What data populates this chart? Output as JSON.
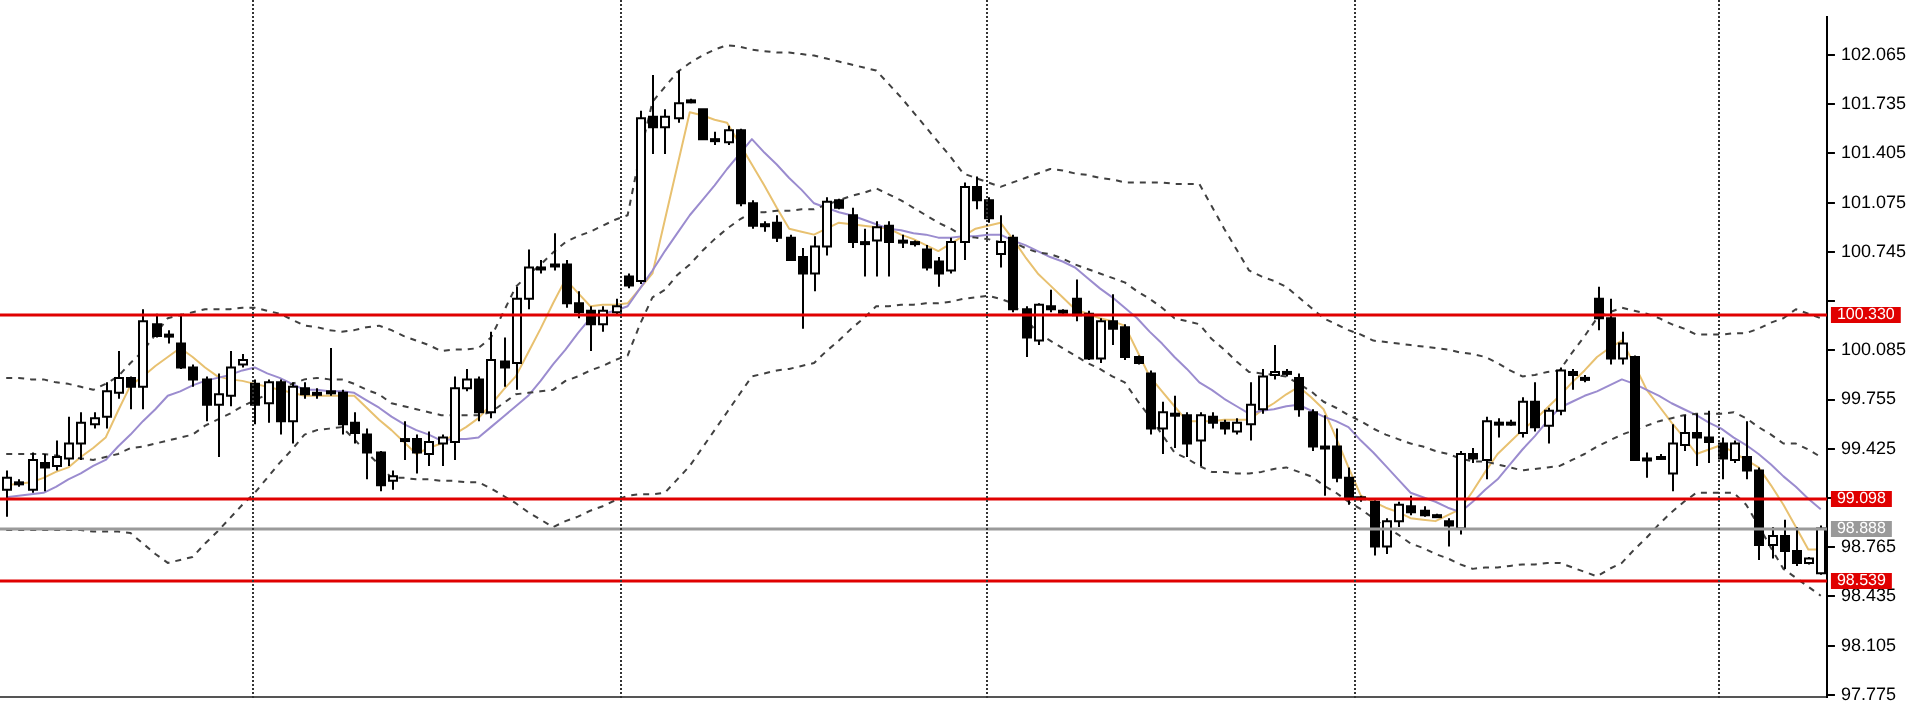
{
  "chart_data": {
    "type": "candlestick",
    "categories": [
      null,
      null,
      null,
      null,
      null,
      null,
      null,
      null,
      null,
      null,
      null,
      null,
      null,
      null,
      null,
      null,
      null,
      null,
      null,
      null,
      null,
      null,
      null,
      null,
      null,
      null,
      null,
      null,
      null,
      null,
      null,
      null,
      null,
      null,
      null,
      null,
      null,
      null,
      null,
      null,
      null,
      null,
      null,
      null,
      null,
      null,
      null,
      null,
      null,
      null,
      null,
      null,
      null,
      null,
      null,
      null,
      null,
      null,
      null,
      null,
      null,
      null,
      null,
      null,
      null,
      null,
      null,
      null,
      null,
      null,
      null,
      null,
      null,
      null,
      null,
      null,
      null,
      null,
      null,
      null,
      null,
      null,
      null,
      null,
      null,
      null,
      null,
      null,
      null,
      null,
      null,
      null,
      null,
      null,
      null,
      null,
      null,
      null,
      null,
      null,
      null,
      null,
      null,
      null,
      null,
      null,
      null,
      null,
      null,
      null,
      null,
      null,
      null,
      null,
      null,
      null,
      null,
      null,
      null,
      null,
      null,
      null,
      null,
      null,
      null,
      null,
      null,
      null,
      null,
      null,
      null,
      null,
      null,
      null,
      null,
      null,
      null,
      null,
      null,
      null,
      null,
      null,
      null,
      null,
      null,
      null,
      null
    ],
    "ohlc": [
      [
        99.15,
        99.28,
        98.97,
        99.23
      ],
      [
        99.19,
        99.22,
        99.17,
        99.2
      ],
      [
        99.15,
        99.4,
        99.13,
        99.35
      ],
      [
        99.33,
        99.39,
        99.14,
        99.3
      ],
      [
        99.31,
        99.48,
        99.28,
        99.37
      ],
      [
        99.36,
        99.64,
        99.31,
        99.46
      ],
      [
        99.46,
        99.67,
        99.35,
        99.6
      ],
      [
        99.59,
        99.67,
        99.56,
        99.63
      ],
      [
        99.64,
        99.87,
        99.56,
        99.81
      ],
      [
        99.8,
        100.08,
        99.76,
        99.9
      ],
      [
        99.9,
        99.91,
        99.69,
        99.84
      ],
      [
        99.84,
        100.36,
        99.69,
        100.28
      ],
      [
        100.26,
        100.33,
        100.17,
        100.18
      ],
      [
        100.18,
        100.22,
        100.13,
        100.19
      ],
      [
        100.13,
        100.33,
        99.96,
        99.97
      ],
      [
        99.97,
        99.99,
        99.84,
        99.89
      ],
      [
        99.89,
        99.91,
        99.61,
        99.72
      ],
      [
        99.72,
        99.93,
        99.37,
        99.79
      ],
      [
        99.78,
        100.08,
        99.71,
        99.97
      ],
      [
        99.99,
        100.06,
        99.97,
        100.02
      ],
      [
        99.86,
        99.89,
        99.59,
        99.72
      ],
      [
        99.73,
        99.89,
        99.6,
        99.87
      ],
      [
        99.87,
        99.89,
        99.52,
        99.61
      ],
      [
        99.61,
        99.87,
        99.46,
        99.84
      ],
      [
        99.83,
        99.87,
        99.76,
        99.79
      ],
      [
        99.8,
        99.83,
        99.76,
        99.8
      ],
      [
        99.8,
        100.1,
        99.78,
        99.81
      ],
      [
        99.8,
        99.82,
        99.52,
        99.59
      ],
      [
        99.6,
        99.67,
        99.46,
        99.53
      ],
      [
        99.52,
        99.56,
        99.22,
        99.4
      ],
      [
        99.4,
        99.41,
        99.14,
        99.18
      ],
      [
        99.21,
        99.28,
        99.15,
        99.24
      ],
      [
        99.49,
        99.61,
        99.35,
        99.49
      ],
      [
        99.49,
        99.52,
        99.26,
        99.4
      ],
      [
        99.39,
        99.54,
        99.31,
        99.47
      ],
      [
        99.46,
        99.52,
        99.31,
        99.5
      ],
      [
        99.47,
        99.91,
        99.35,
        99.83
      ],
      [
        99.83,
        99.96,
        99.81,
        99.89
      ],
      [
        99.89,
        99.91,
        99.61,
        99.67
      ],
      [
        99.67,
        100.21,
        99.63,
        100.02
      ],
      [
        100.01,
        100.17,
        99.84,
        99.97
      ],
      [
        100.0,
        100.51,
        99.82,
        100.43
      ],
      [
        100.43,
        100.76,
        100.36,
        100.64
      ],
      [
        100.63,
        100.69,
        100.6,
        100.64
      ],
      [
        100.66,
        100.87,
        100.62,
        100.66
      ],
      [
        100.66,
        100.69,
        100.37,
        100.4
      ],
      [
        100.4,
        100.48,
        100.3,
        100.34
      ],
      [
        100.35,
        100.38,
        100.08,
        100.26
      ],
      [
        100.26,
        100.38,
        100.21,
        100.35
      ],
      [
        100.34,
        100.43,
        100.32,
        100.38
      ],
      [
        100.58,
        100.6,
        100.5,
        100.52
      ],
      [
        100.55,
        101.69,
        100.53,
        101.64
      ],
      [
        101.65,
        101.93,
        101.4,
        101.58
      ],
      [
        101.58,
        101.7,
        101.4,
        101.65
      ],
      [
        101.64,
        101.96,
        101.61,
        101.74
      ],
      [
        101.76,
        101.77,
        101.74,
        101.75
      ],
      [
        101.7,
        101.7,
        101.5,
        101.5
      ],
      [
        101.5,
        101.55,
        101.46,
        101.5
      ],
      [
        101.48,
        101.59,
        101.46,
        101.56
      ],
      [
        101.56,
        101.57,
        101.05,
        101.07
      ],
      [
        101.07,
        101.09,
        100.9,
        100.92
      ],
      [
        100.93,
        100.95,
        100.88,
        100.93
      ],
      [
        100.94,
        100.99,
        100.81,
        100.84
      ],
      [
        100.84,
        100.86,
        100.69,
        100.69
      ],
      [
        100.71,
        100.77,
        100.23,
        100.6
      ],
      [
        100.6,
        100.85,
        100.48,
        100.78
      ],
      [
        100.78,
        101.11,
        100.72,
        101.08
      ],
      [
        101.09,
        101.1,
        101.03,
        101.04
      ],
      [
        100.99,
        101.04,
        100.77,
        100.81
      ],
      [
        100.81,
        100.9,
        100.58,
        100.81
      ],
      [
        100.82,
        100.95,
        100.58,
        100.91
      ],
      [
        100.92,
        100.95,
        100.58,
        100.81
      ],
      [
        100.82,
        100.86,
        100.77,
        100.81
      ],
      [
        100.81,
        100.82,
        100.78,
        100.8
      ],
      [
        100.76,
        100.79,
        100.62,
        100.64
      ],
      [
        100.68,
        100.71,
        100.51,
        100.6
      ],
      [
        100.62,
        100.84,
        100.6,
        100.81
      ],
      [
        100.81,
        101.21,
        100.69,
        101.18
      ],
      [
        101.18,
        101.25,
        101.03,
        101.09
      ],
      [
        101.09,
        101.11,
        100.94,
        100.97
      ],
      [
        100.73,
        100.99,
        100.64,
        100.81
      ],
      [
        100.84,
        100.86,
        100.34,
        100.36
      ],
      [
        100.36,
        100.38,
        100.04,
        100.17
      ],
      [
        100.15,
        100.4,
        100.12,
        100.39
      ],
      [
        100.38,
        100.49,
        100.34,
        100.36
      ],
      [
        100.35,
        100.36,
        100.32,
        100.35
      ],
      [
        100.43,
        100.56,
        100.28,
        100.32
      ],
      [
        100.33,
        100.35,
        100.02,
        100.03
      ],
      [
        100.03,
        100.3,
        100.0,
        100.28
      ],
      [
        100.28,
        100.46,
        100.12,
        100.23
      ],
      [
        100.24,
        100.26,
        100.02,
        100.04
      ],
      [
        100.04,
        100.05,
        99.99,
        100.0
      ],
      [
        99.93,
        99.95,
        99.52,
        99.56
      ],
      [
        99.56,
        99.74,
        99.39,
        99.67
      ],
      [
        99.66,
        99.78,
        99.43,
        99.66
      ],
      [
        99.65,
        99.67,
        99.37,
        99.46
      ],
      [
        99.48,
        99.67,
        99.31,
        99.65
      ],
      [
        99.64,
        99.67,
        99.56,
        99.6
      ],
      [
        99.6,
        99.62,
        99.52,
        99.56
      ],
      [
        99.54,
        99.63,
        99.52,
        99.6
      ],
      [
        99.59,
        99.87,
        99.48,
        99.72
      ],
      [
        99.69,
        99.96,
        99.66,
        99.91
      ],
      [
        99.92,
        100.12,
        99.89,
        99.94
      ],
      [
        99.94,
        99.96,
        99.91,
        99.94
      ],
      [
        99.9,
        99.93,
        99.64,
        99.69
      ],
      [
        99.67,
        99.69,
        99.41,
        99.44
      ],
      [
        99.44,
        99.65,
        99.11,
        99.44
      ],
      [
        99.44,
        99.56,
        99.2,
        99.23
      ],
      [
        99.23,
        99.3,
        99.05,
        99.1
      ],
      [
        99.1,
        99.11,
        99.07,
        99.1
      ],
      [
        99.07,
        99.08,
        98.71,
        98.77
      ],
      [
        98.77,
        98.96,
        98.72,
        98.94
      ],
      [
        98.94,
        99.07,
        98.9,
        99.05
      ],
      [
        99.04,
        99.11,
        98.98,
        99.0
      ],
      [
        99.01,
        99.04,
        98.97,
        98.98
      ],
      [
        98.98,
        98.99,
        98.97,
        98.98
      ],
      [
        98.94,
        98.96,
        98.77,
        98.91
      ],
      [
        98.89,
        99.41,
        98.85,
        99.39
      ],
      [
        99.39,
        99.43,
        99.33,
        99.36
      ],
      [
        99.35,
        99.64,
        99.22,
        99.61
      ],
      [
        99.6,
        99.63,
        99.5,
        99.6
      ],
      [
        99.6,
        99.62,
        99.58,
        99.6
      ],
      [
        99.53,
        99.77,
        99.5,
        99.74
      ],
      [
        99.74,
        99.87,
        99.54,
        99.57
      ],
      [
        99.58,
        99.7,
        99.46,
        99.68
      ],
      [
        99.68,
        99.97,
        99.65,
        99.95
      ],
      [
        99.94,
        99.96,
        99.82,
        99.92
      ],
      [
        99.9,
        99.92,
        99.87,
        99.9
      ],
      [
        100.43,
        100.51,
        100.22,
        100.3
      ],
      [
        100.3,
        100.43,
        99.99,
        100.03
      ],
      [
        100.03,
        100.21,
        99.99,
        100.13
      ],
      [
        100.04,
        100.05,
        99.35,
        99.35
      ],
      [
        99.36,
        99.4,
        99.23,
        99.36
      ],
      [
        99.37,
        99.39,
        99.35,
        99.37
      ],
      [
        99.26,
        99.59,
        99.14,
        99.46
      ],
      [
        99.45,
        99.65,
        99.41,
        99.53
      ],
      [
        99.53,
        99.66,
        99.31,
        99.5
      ],
      [
        99.5,
        99.68,
        99.33,
        99.47
      ],
      [
        99.46,
        99.5,
        99.22,
        99.36
      ],
      [
        99.35,
        99.48,
        99.33,
        99.46
      ],
      [
        99.37,
        99.61,
        99.22,
        99.28
      ],
      [
        99.28,
        99.3,
        98.68,
        98.78
      ],
      [
        98.78,
        98.9,
        98.69,
        98.84
      ],
      [
        98.84,
        98.95,
        98.62,
        98.74
      ],
      [
        98.74,
        98.9,
        98.64,
        98.66
      ],
      [
        98.66,
        98.7,
        98.65,
        98.69
      ],
      [
        98.59,
        98.91,
        98.58,
        98.89
      ]
    ],
    "series": [
      {
        "type": "line",
        "color": "#404040",
        "line_style": "dashed",
        "values": [
          99.9,
          99.9,
          99.89,
          99.89,
          99.87,
          99.86,
          99.84,
          99.82,
          99.86,
          99.91,
          100.0,
          100.08,
          100.19,
          100.3,
          100.32,
          100.34,
          100.36,
          100.36,
          100.36,
          100.37,
          100.37,
          100.35,
          100.33,
          100.29,
          100.25,
          100.24,
          100.22,
          100.21,
          100.22,
          100.24,
          100.25,
          100.22,
          100.18,
          100.15,
          100.12,
          100.08,
          100.09,
          100.09,
          100.1,
          100.17,
          100.34,
          100.51,
          100.59,
          100.66,
          100.74,
          100.81,
          100.85,
          100.88,
          100.92,
          100.96,
          100.99,
          101.4,
          101.75,
          101.85,
          101.95,
          102.01,
          102.06,
          102.1,
          102.13,
          102.12,
          102.1,
          102.09,
          102.08,
          102.08,
          102.07,
          102.06,
          102.04,
          102.02,
          102.0,
          101.98,
          101.96,
          101.87,
          101.78,
          101.68,
          101.58,
          101.48,
          101.38,
          101.27,
          101.24,
          101.21,
          101.18,
          101.21,
          101.24,
          101.27,
          101.3,
          101.29,
          101.27,
          101.26,
          101.24,
          101.23,
          101.21,
          101.21,
          101.21,
          101.21,
          101.2,
          101.2,
          101.2,
          101.05,
          100.9,
          100.76,
          100.62,
          100.58,
          100.55,
          100.51,
          100.44,
          100.37,
          100.3,
          100.26,
          100.22,
          100.19,
          100.15,
          100.14,
          100.13,
          100.12,
          100.11,
          100.1,
          100.09,
          100.07,
          100.06,
          100.04,
          100.0,
          99.95,
          99.91,
          99.92,
          99.94,
          99.95,
          100.07,
          100.18,
          100.3,
          100.34,
          100.37,
          100.35,
          100.33,
          100.3,
          100.26,
          100.23,
          100.19,
          100.19,
          100.19,
          100.2,
          100.2,
          100.23,
          100.27,
          100.3,
          100.36,
          100.33,
          100.3
        ]
      },
      {
        "type": "line",
        "color": "#404040",
        "line_style": "dashed",
        "values": [
          99.39,
          99.39,
          99.39,
          99.39,
          99.38,
          99.37,
          99.36,
          99.35,
          99.37,
          99.39,
          99.43,
          99.44,
          99.46,
          99.48,
          99.5,
          99.52,
          99.58,
          99.62,
          99.66,
          99.71,
          99.75,
          99.79,
          99.83,
          99.86,
          99.89,
          99.9,
          99.89,
          99.89,
          99.86,
          99.82,
          99.79,
          99.73,
          99.71,
          99.69,
          99.67,
          99.65,
          99.65,
          99.65,
          99.65,
          99.67,
          99.73,
          99.79,
          99.8,
          99.81,
          99.82,
          99.88,
          99.91,
          99.95,
          99.98,
          100.02,
          100.05,
          100.26,
          100.44,
          100.49,
          100.59,
          100.66,
          100.75,
          100.83,
          100.9,
          100.96,
          101.01,
          101.01,
          101.02,
          101.02,
          101.03,
          101.03,
          101.06,
          101.09,
          101.12,
          101.14,
          101.17,
          101.13,
          101.09,
          101.04,
          100.99,
          100.94,
          100.9,
          100.85,
          100.84,
          100.83,
          100.81,
          100.81,
          100.77,
          100.74,
          100.73,
          100.7,
          100.66,
          100.63,
          100.6,
          100.57,
          100.54,
          100.48,
          100.43,
          100.37,
          100.3,
          100.28,
          100.26,
          100.16,
          100.09,
          100.01,
          99.94,
          99.93,
          99.92,
          99.91,
          99.86,
          99.81,
          99.74,
          99.7,
          99.65,
          99.61,
          99.56,
          99.52,
          99.49,
          99.46,
          99.44,
          99.41,
          99.39,
          99.36,
          99.34,
          99.34,
          99.32,
          99.3,
          99.28,
          99.29,
          99.3,
          99.31,
          99.35,
          99.39,
          99.44,
          99.48,
          99.52,
          99.55,
          99.58,
          99.61,
          99.63,
          99.65,
          99.66,
          99.66,
          99.66,
          99.67,
          99.63,
          99.57,
          99.52,
          99.46,
          99.46,
          99.42,
          99.37
        ]
      },
      {
        "type": "line",
        "color": "#404040",
        "line_style": "dashed",
        "values": [
          98.88,
          98.88,
          98.88,
          98.88,
          98.88,
          98.88,
          98.88,
          98.87,
          98.87,
          98.87,
          98.86,
          98.79,
          98.72,
          98.66,
          98.68,
          98.7,
          98.79,
          98.87,
          98.96,
          99.05,
          99.13,
          99.23,
          99.33,
          99.42,
          99.52,
          99.55,
          99.56,
          99.57,
          99.49,
          99.4,
          99.32,
          99.23,
          99.23,
          99.22,
          99.22,
          99.21,
          99.21,
          99.2,
          99.2,
          99.16,
          99.11,
          99.06,
          99.0,
          98.95,
          98.9,
          98.94,
          98.97,
          99.01,
          99.04,
          99.08,
          99.11,
          99.12,
          99.12,
          99.13,
          99.22,
          99.31,
          99.43,
          99.55,
          99.67,
          99.79,
          99.91,
          99.93,
          99.95,
          99.96,
          99.98,
          100.0,
          100.08,
          100.15,
          100.23,
          100.3,
          100.38,
          100.38,
          100.39,
          100.39,
          100.4,
          100.4,
          100.41,
          100.43,
          100.44,
          100.45,
          100.43,
          100.4,
          100.3,
          100.2,
          100.15,
          100.1,
          100.05,
          100.0,
          99.96,
          99.91,
          99.87,
          99.75,
          99.64,
          99.52,
          99.4,
          99.36,
          99.31,
          99.27,
          99.27,
          99.26,
          99.26,
          99.27,
          99.29,
          99.3,
          99.27,
          99.24,
          99.18,
          99.13,
          99.07,
          99.02,
          98.96,
          98.9,
          98.85,
          98.79,
          98.76,
          98.72,
          98.69,
          98.65,
          98.62,
          98.63,
          98.63,
          98.64,
          98.65,
          98.65,
          98.66,
          98.66,
          98.63,
          98.6,
          98.57,
          98.62,
          98.66,
          98.75,
          98.83,
          98.92,
          99.0,
          99.07,
          99.13,
          99.13,
          99.13,
          99.13,
          99.05,
          98.91,
          98.76,
          98.62,
          98.56,
          98.5,
          98.44
        ]
      },
      {
        "type": "line",
        "color": "#9b8ccf",
        "values": [
          99.1,
          99.11,
          99.12,
          99.13,
          99.17,
          99.22,
          99.26,
          99.31,
          99.35,
          99.44,
          99.52,
          99.61,
          99.69,
          99.78,
          99.81,
          99.85,
          99.88,
          99.9,
          99.92,
          99.95,
          99.97,
          99.93,
          99.9,
          99.86,
          99.82,
          99.82,
          99.81,
          99.81,
          99.8,
          99.75,
          99.7,
          99.64,
          99.59,
          99.55,
          99.52,
          99.48,
          99.49,
          99.49,
          99.5,
          99.57,
          99.64,
          99.71,
          99.78,
          99.88,
          99.99,
          100.09,
          100.2,
          100.3,
          100.33,
          100.35,
          100.38,
          100.5,
          100.62,
          100.75,
          100.87,
          100.99,
          101.09,
          101.19,
          101.3,
          101.4,
          101.5,
          101.41,
          101.33,
          101.24,
          101.16,
          101.07,
          101.04,
          101.01,
          100.99,
          100.96,
          100.93,
          100.9,
          100.89,
          100.87,
          100.86,
          100.84,
          100.84,
          100.85,
          100.85,
          100.86,
          100.86,
          100.82,
          100.79,
          100.75,
          100.71,
          100.68,
          100.64,
          100.57,
          100.5,
          100.44,
          100.37,
          100.3,
          100.21,
          100.13,
          100.04,
          99.96,
          99.87,
          99.82,
          99.76,
          99.71,
          99.66,
          99.68,
          99.69,
          99.71,
          99.72,
          99.68,
          99.64,
          99.61,
          99.57,
          99.48,
          99.4,
          99.31,
          99.22,
          99.13,
          99.1,
          99.07,
          99.03,
          99.0,
          99.07,
          99.15,
          99.22,
          99.32,
          99.42,
          99.51,
          99.61,
          99.7,
          99.74,
          99.78,
          99.81,
          99.85,
          99.89,
          99.86,
          99.82,
          99.78,
          99.73,
          99.69,
          99.65,
          99.6,
          99.56,
          99.5,
          99.45,
          99.39,
          99.32,
          99.24,
          99.17,
          99.09,
          99.02
        ]
      },
      {
        "type": "line",
        "color": "#e8c170",
        "values": [
          99.18,
          99.19,
          99.2,
          99.23,
          99.27,
          99.3,
          99.37,
          99.43,
          99.5,
          99.68,
          99.85,
          99.91,
          99.98,
          100.04,
          100.1,
          100.04,
          99.97,
          99.91,
          99.89,
          99.88,
          99.86,
          99.84,
          99.82,
          99.8,
          99.78,
          99.78,
          99.78,
          99.78,
          99.78,
          99.7,
          99.62,
          99.55,
          99.47,
          99.39,
          99.43,
          99.46,
          99.52,
          99.57,
          99.63,
          99.72,
          99.82,
          99.91,
          100.07,
          100.23,
          100.4,
          100.56,
          100.47,
          100.38,
          100.39,
          100.39,
          100.4,
          100.5,
          100.6,
          100.96,
          101.32,
          101.68,
          101.66,
          101.63,
          101.61,
          101.47,
          101.33,
          101.19,
          101.04,
          100.9,
          100.88,
          100.86,
          100.9,
          100.94,
          100.93,
          100.92,
          100.91,
          100.9,
          100.86,
          100.83,
          100.79,
          100.75,
          100.8,
          100.85,
          100.9,
          100.92,
          100.94,
          100.83,
          100.71,
          100.6,
          100.52,
          100.44,
          100.36,
          100.33,
          100.3,
          100.28,
          100.25,
          100.08,
          99.91,
          99.81,
          99.71,
          99.61,
          99.61,
          99.61,
          99.62,
          99.62,
          99.62,
          99.68,
          99.73,
          99.79,
          99.84,
          99.77,
          99.69,
          99.5,
          99.3,
          99.11,
          99.07,
          99.03,
          99.0,
          98.96,
          98.95,
          98.94,
          98.98,
          99.02,
          99.14,
          99.27,
          99.39,
          99.47,
          99.55,
          99.62,
          99.7,
          99.78,
          99.87,
          99.95,
          100.04,
          100.1,
          100.15,
          99.99,
          99.82,
          99.71,
          99.6,
          99.5,
          99.39,
          99.42,
          99.45,
          99.4,
          99.35,
          99.3,
          99.18,
          99.05,
          98.9,
          98.75,
          98.75
        ]
      }
    ],
    "ylim": [
      97.76,
      102.32
    ],
    "yticks": [
      97.775,
      98.105,
      98.435,
      98.765,
      {
        "value": 99.095,
        "label": null
      },
      99.425,
      99.755,
      100.085,
      {
        "value": 100.415,
        "label": null
      },
      100.745,
      101.075,
      101.405,
      101.735,
      102.065
    ],
    "tick_labels": "y",
    "ref_lines": [
      {
        "axis": "y",
        "value": 100.33,
        "label": "100.330",
        "color": "#e00000"
      },
      {
        "axis": "y",
        "value": 99.098,
        "label": "99.098",
        "color": "#e00000"
      },
      {
        "axis": "y",
        "value": 98.888,
        "label": "98.888",
        "color": "#9a9a9a"
      },
      {
        "axis": "y",
        "value": 98.539,
        "label": "98.539",
        "color": "#e00000"
      }
    ]
  }
}
